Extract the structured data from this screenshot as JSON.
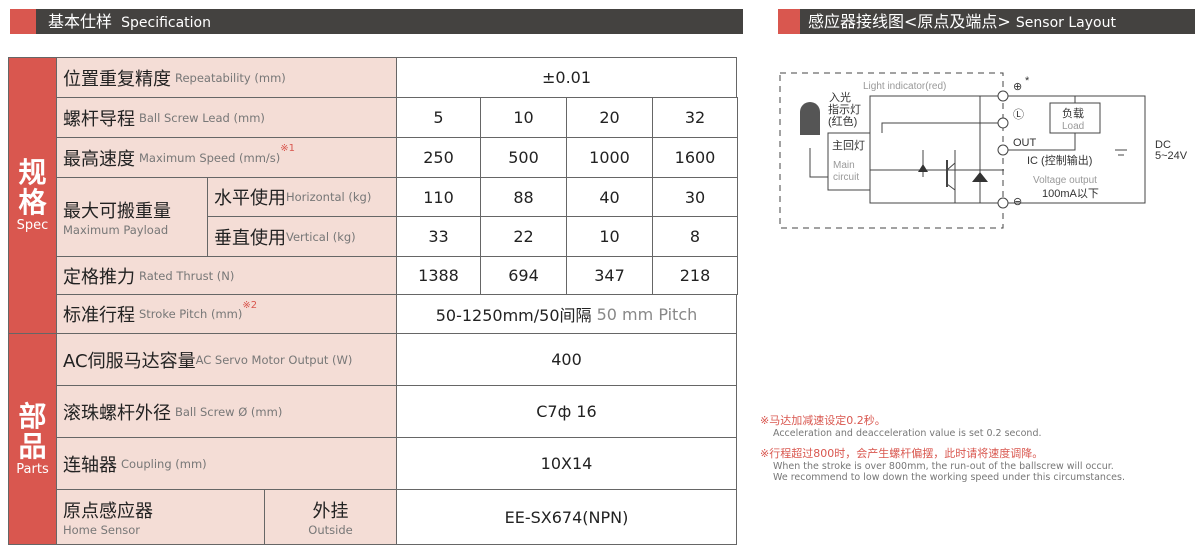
{
  "spec_header": {
    "zh": "基本仕样",
    "en": "Specification"
  },
  "sensor_header": {
    "zh": "感应器接线图<原点及端点>",
    "en": "Sensor Layout"
  },
  "sections": {
    "spec": {
      "zh": "规格",
      "en": "Spec"
    },
    "parts": {
      "zh": "部品",
      "en": "Parts"
    }
  },
  "rows": {
    "repeatability": {
      "zh": "位置重复精度",
      "en": "Repeatability (mm)",
      "value": "±0.01"
    },
    "lead": {
      "zh": "螺杆导程",
      "en": "Ball Screw Lead (mm)",
      "values": [
        "5",
        "10",
        "20",
        "32"
      ]
    },
    "speed": {
      "zh": "最高速度",
      "en": "Maximum Speed (mm/s)",
      "note": "※1",
      "values": [
        "250",
        "500",
        "1000",
        "1600"
      ]
    },
    "payload": {
      "zh": "最大可搬重量",
      "en": "Maximum Payload",
      "horizontal": {
        "zh": "水平使用",
        "en": "Horizontal (kg)",
        "values": [
          "110",
          "88",
          "40",
          "30"
        ]
      },
      "vertical": {
        "zh": "垂直使用",
        "en": "Vertical (kg)",
        "values": [
          "33",
          "22",
          "10",
          "8"
        ]
      }
    },
    "thrust": {
      "zh": "定格推力",
      "en": "Rated Thrust (N)",
      "values": [
        "1388",
        "694",
        "347",
        "218"
      ]
    },
    "stroke": {
      "zh": "标准行程",
      "en": "Stroke Pitch (mm)",
      "note": "※2",
      "value": "50-1250mm/50间隔",
      "value_en": "50 mm Pitch"
    },
    "motor": {
      "zh": "AC伺服马达容量",
      "en": "AC Servo Motor Output (W)",
      "value": "400"
    },
    "ballscrew": {
      "zh": "滚珠螺杆外径",
      "en": "Ball Screw Ø (mm)",
      "value": "C7ф 16"
    },
    "coupling": {
      "zh": "连轴器",
      "en": "Coupling (mm)",
      "value": "10X14"
    },
    "home": {
      "zh": "原点感应器",
      "en": "Home Sensor",
      "mount_zh": "外挂",
      "mount_en": "Outside",
      "value": "EE-SX674(NPN)"
    }
  },
  "diagram": {
    "light_indicator": "Light indicator(red)",
    "lamp_zh1": "入光",
    "lamp_zh2": "指示灯",
    "lamp_zh3": "(红色)",
    "main_zh": "主回灯",
    "main_en1": "Main",
    "main_en2": "circuit",
    "load_zh": "负载",
    "load_en": "Load",
    "out": "OUT",
    "ic": "IC (控制输出)",
    "voltage": "Voltage output",
    "current": "100mA以下",
    "dc": "DC",
    "dc_v": "5~24V",
    "star": "*",
    "plus": "⊕",
    "l": "Ⓛ",
    "minus": "⊖"
  },
  "notes": [
    {
      "zh": "※马达加减速设定0.2秒。",
      "en": [
        "Acceleration and deacceleration value is set 0.2 second."
      ]
    },
    {
      "zh": "※行程超过800时，会产生螺杆偏摆，此时请将速度调降。",
      "en": [
        "When the stroke is over 800mm, the run-out of the ballscrew will occur.",
        "We recommend to low down the working speed under this circumstances."
      ]
    }
  ]
}
